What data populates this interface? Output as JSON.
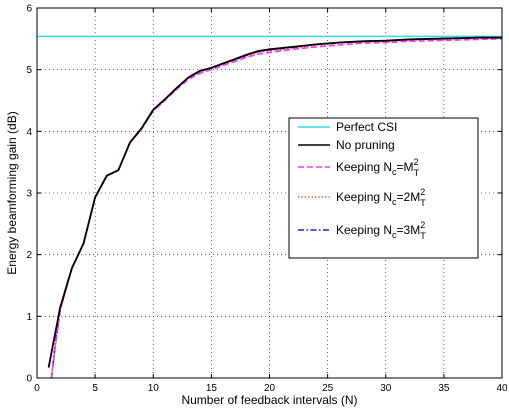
{
  "chart_data": {
    "type": "line",
    "title": "",
    "xlabel": "Number of feedback intervals (N)",
    "ylabel": "Energy beamforming gain (dB)",
    "xlim": [
      0,
      40
    ],
    "ylim": [
      0,
      6
    ],
    "xticks": [
      "0",
      "5",
      "10",
      "15",
      "20",
      "25",
      "30",
      "35",
      "40"
    ],
    "yticks": [
      "0",
      "1",
      "2",
      "3",
      "4",
      "5",
      "6"
    ],
    "grid": true,
    "legend_position": "center-right",
    "series": [
      {
        "name": "Perfect CSI",
        "color": "#33dddd",
        "dash": "solid",
        "x": [
          0,
          40
        ],
        "y": [
          5.54,
          5.54
        ]
      },
      {
        "name": "No pruning",
        "color": "#000000",
        "dash": "solid",
        "x": [
          1,
          2,
          3,
          4,
          5,
          6,
          7,
          8,
          9,
          10,
          11,
          12,
          13,
          14,
          15,
          16,
          17,
          18,
          19,
          20,
          22,
          24,
          26,
          28,
          30,
          32,
          34,
          36,
          38,
          40
        ],
        "y": [
          0.17,
          1.15,
          1.78,
          2.18,
          2.93,
          3.28,
          3.37,
          3.82,
          4.05,
          4.35,
          4.52,
          4.7,
          4.87,
          4.98,
          5.03,
          5.1,
          5.17,
          5.24,
          5.3,
          5.33,
          5.37,
          5.41,
          5.44,
          5.46,
          5.47,
          5.49,
          5.5,
          5.51,
          5.52,
          5.52
        ]
      },
      {
        "name": "Keeping N",
        "name_sub": "c",
        "name_mid": "=M",
        "name_sup": "2",
        "name_sub2": "T",
        "color": "#ff33ff",
        "dash": "dashed",
        "x": [
          1.25,
          1.6,
          2,
          3,
          4,
          5,
          6,
          7,
          8,
          9,
          10,
          11,
          12,
          13,
          14,
          15,
          16,
          17,
          18,
          19,
          20,
          22,
          24,
          26,
          28,
          30,
          32,
          34,
          36,
          38,
          40
        ],
        "y": [
          0,
          0.55,
          1.1,
          1.78,
          2.18,
          2.92,
          3.27,
          3.37,
          3.81,
          4.04,
          4.33,
          4.5,
          4.68,
          4.84,
          4.94,
          5.0,
          5.07,
          5.13,
          5.2,
          5.25,
          5.28,
          5.33,
          5.37,
          5.4,
          5.43,
          5.44,
          5.46,
          5.47,
          5.48,
          5.49,
          5.5
        ]
      },
      {
        "name": "Keeping N",
        "name_sub": "c",
        "name_mid": "=2M",
        "name_sup": "2",
        "name_sub2": "T",
        "color": "#ff3333",
        "dash": "dotted",
        "x": [
          1.25,
          1.6,
          2,
          3,
          4,
          5,
          6,
          7,
          8,
          9,
          10,
          11,
          12,
          13,
          14,
          15,
          16,
          17,
          18,
          19,
          20,
          22,
          24,
          26,
          28,
          30,
          32,
          34,
          36,
          38,
          40
        ],
        "y": [
          0,
          0.55,
          1.1,
          1.78,
          2.18,
          2.93,
          3.28,
          3.37,
          3.82,
          4.05,
          4.34,
          4.51,
          4.69,
          4.86,
          4.96,
          5.02,
          5.09,
          5.15,
          5.22,
          5.28,
          5.31,
          5.35,
          5.4,
          5.43,
          5.45,
          5.46,
          5.48,
          5.49,
          5.5,
          5.51,
          5.51
        ]
      },
      {
        "name": "Keeping N",
        "name_sub": "c",
        "name_mid": "=3M",
        "name_sup": "2",
        "name_sub2": "T",
        "color": "#2222cc",
        "dash": "dashdot",
        "x": [
          1.25,
          1.6,
          2,
          3,
          4,
          5,
          6,
          7,
          8,
          9,
          10,
          11,
          12,
          13,
          14,
          15,
          16,
          17,
          18,
          19,
          20,
          22,
          24,
          26,
          28,
          30,
          32,
          34,
          36,
          38,
          40
        ],
        "y": [
          0,
          0.6,
          1.12,
          1.78,
          2.18,
          2.93,
          3.28,
          3.37,
          3.82,
          4.05,
          4.35,
          4.52,
          4.7,
          4.87,
          4.97,
          5.03,
          5.1,
          5.16,
          5.23,
          5.29,
          5.32,
          5.36,
          5.41,
          5.44,
          5.46,
          5.47,
          5.49,
          5.5,
          5.51,
          5.52,
          5.52
        ]
      }
    ]
  }
}
